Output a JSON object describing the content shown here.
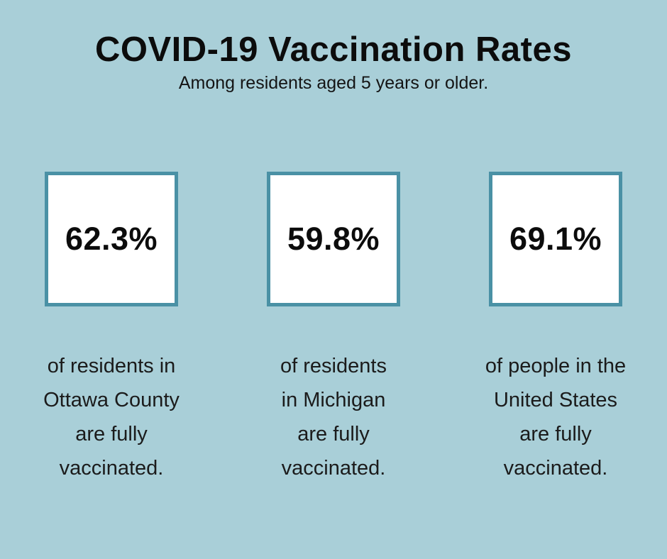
{
  "page": {
    "background_color": "#a9cfd8",
    "box_border_color": "#4a91a5",
    "box_fill_color": "#ffffff",
    "text_color": "#1b1b1b"
  },
  "header": {
    "title": "COVID-19 Vaccination Rates",
    "subtitle": "Among residents aged 5 years or older."
  },
  "stats": [
    {
      "value": "62.3%",
      "caption": "of residents in\nOttawa County\nare fully\nvaccinated."
    },
    {
      "value": "59.8%",
      "caption": "of residents\nin Michigan\nare fully\nvaccinated."
    },
    {
      "value": "69.1%",
      "caption": "of people in the\nUnited States\nare fully\nvaccinated."
    }
  ],
  "chart_data": {
    "type": "table",
    "title": "COVID-19 Vaccination Rates",
    "subtitle": "Among residents aged 5 years or older.",
    "categories": [
      "Ottawa County residents",
      "Michigan residents",
      "United States people"
    ],
    "values": [
      62.3,
      59.8,
      69.1
    ],
    "unit": "%",
    "note": "fully vaccinated share, shown as three labeled stat boxes"
  }
}
